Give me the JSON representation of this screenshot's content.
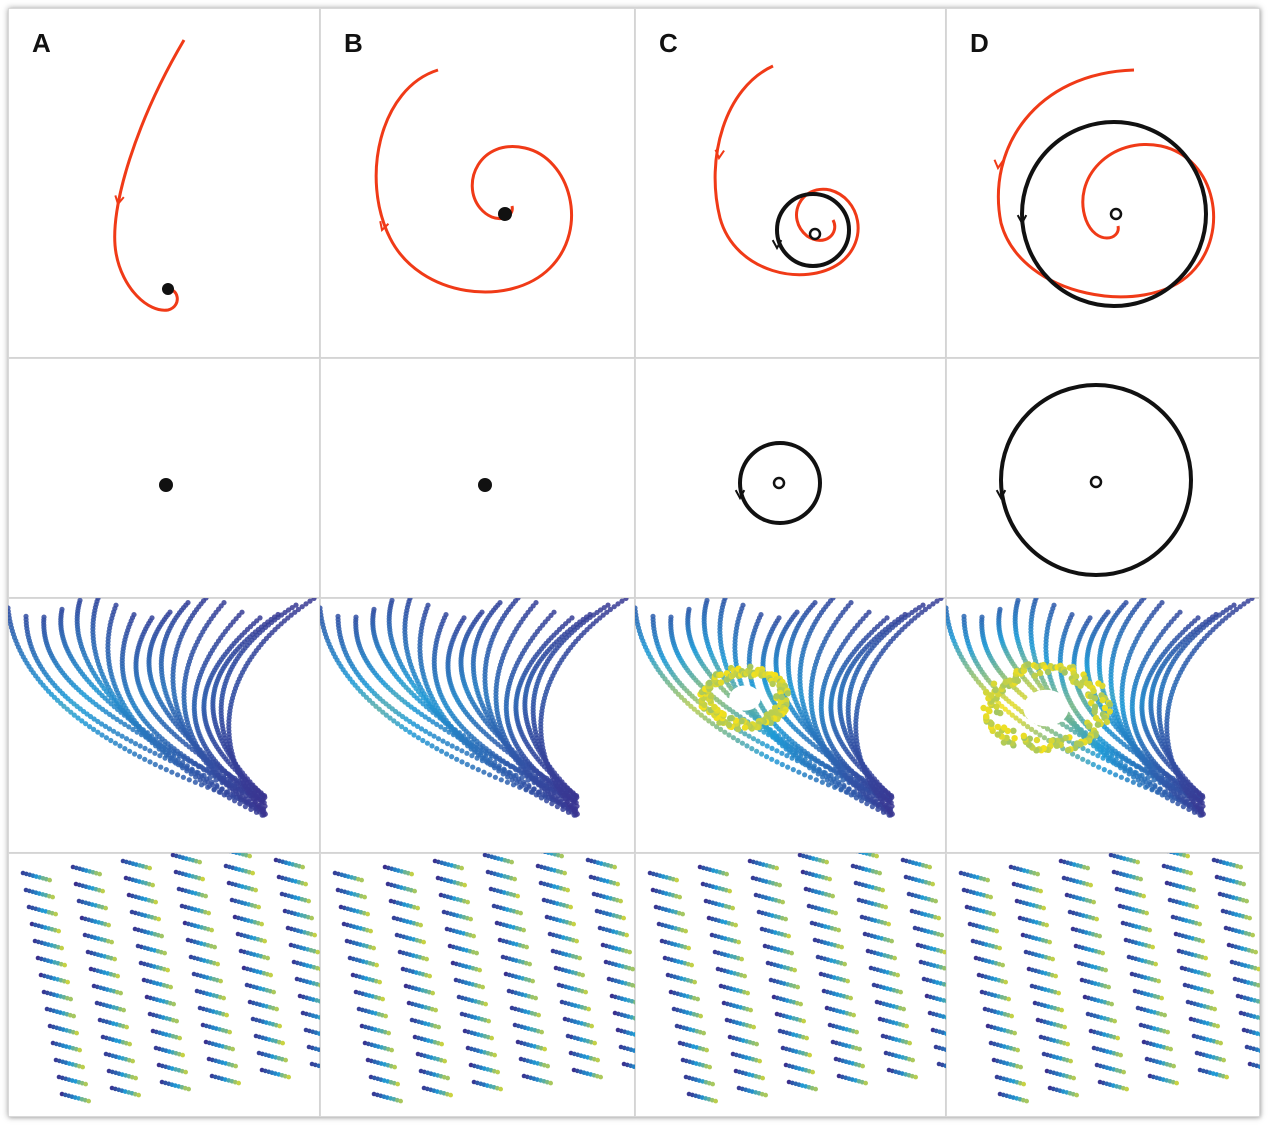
{
  "figure": {
    "columns": [
      {
        "label": "A",
        "attractor": "stable-spiral-point"
      },
      {
        "label": "B",
        "attractor": "stable-spiral-point"
      },
      {
        "label": "C",
        "attractor": "small-limit-cycle"
      },
      {
        "label": "D",
        "attractor": "large-limit-cycle"
      }
    ],
    "rows": [
      "trajectory-schematic",
      "attractor-only",
      "dense-phase-scatter",
      "sparse-phase-scatter"
    ],
    "colors": {
      "trajectory": "#f03a17",
      "attractor": "#111111",
      "scatter_low": "#3b2e8c",
      "scatter_mid": "#1f9ad6",
      "scatter_high": "#f7e21a",
      "grid_line": "#d9d9d9"
    }
  }
}
